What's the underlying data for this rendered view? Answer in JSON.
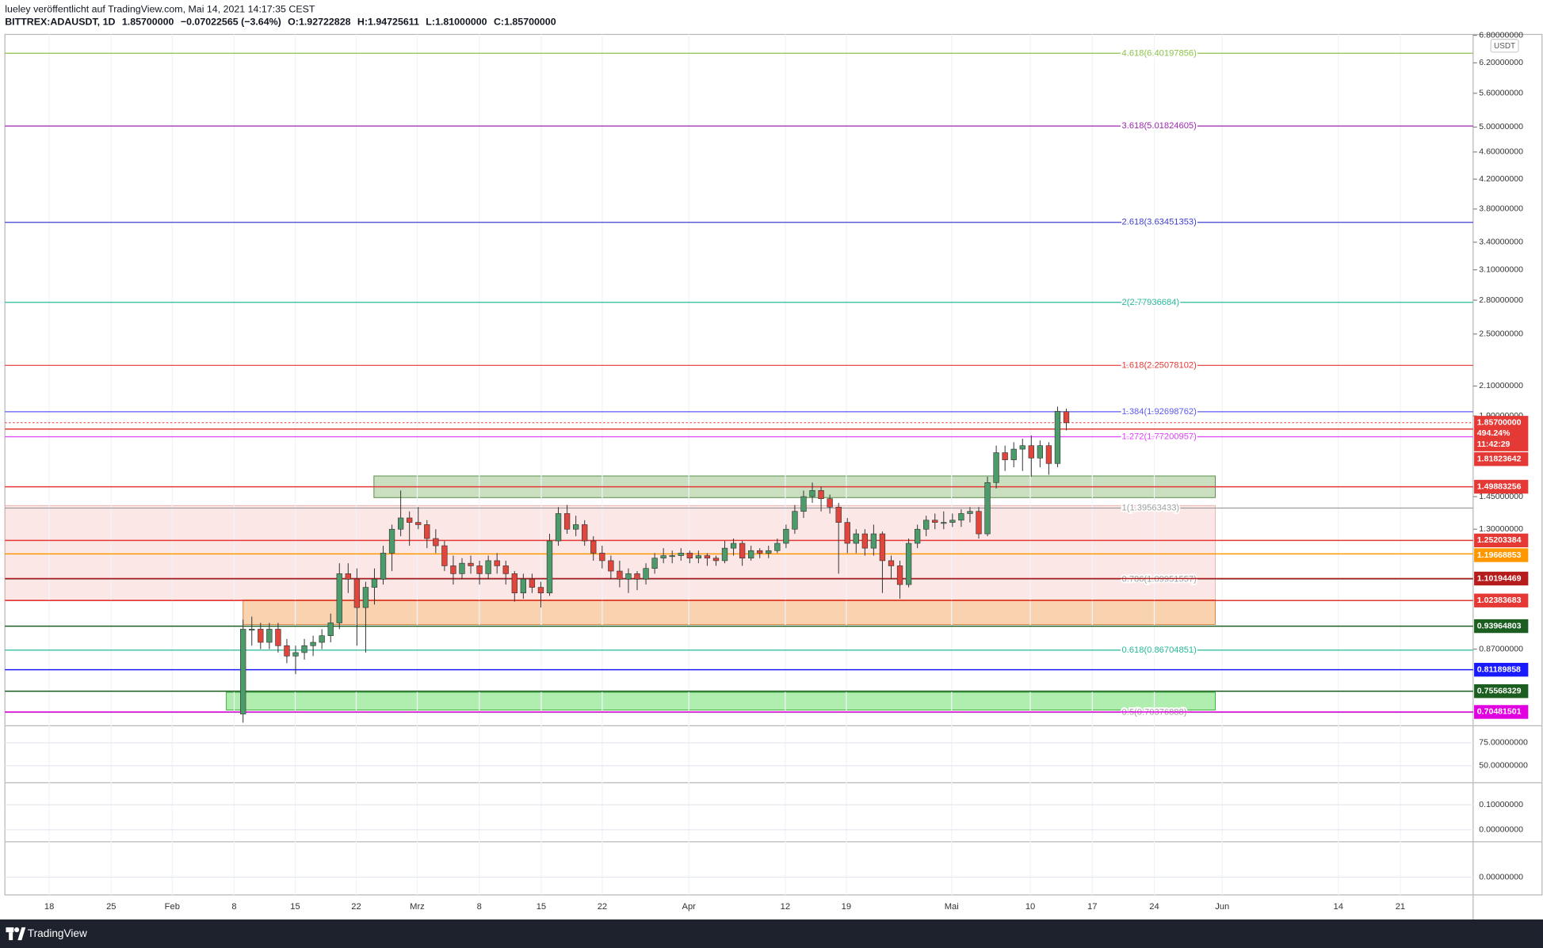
{
  "chart_data": {
    "type": "candlestick",
    "title": "lueley veröffentlicht auf TradingView.com, Mai 14, 2021 14:17:35 CEST",
    "subtitle": "BITTREX:ADAUSDT, 1D",
    "ohlc_summary": [
      "1.85700000",
      "−0.07022565 (−3.64%)",
      "O:1.92722828",
      "H:1.94725611",
      "L:1.81000000",
      "C:1.85700000"
    ],
    "currency": "USDT",
    "log_scale": true,
    "ylim": [
      0.673,
      6.82
    ],
    "yticks": [
      {
        "value": 6.8,
        "label": "6.80000000"
      },
      {
        "value": 6.2,
        "label": "6.20000000"
      },
      {
        "value": 5.6,
        "label": "5.60000000"
      },
      {
        "value": 5.0,
        "label": "5.00000000"
      },
      {
        "value": 4.6,
        "label": "4.60000000"
      },
      {
        "value": 4.2,
        "label": "4.20000000"
      },
      {
        "value": 3.8,
        "label": "3.80000000"
      },
      {
        "value": 3.4,
        "label": "3.40000000"
      },
      {
        "value": 3.1,
        "label": "3.10000000"
      },
      {
        "value": 2.8,
        "label": "2.80000000"
      },
      {
        "value": 2.5,
        "label": "2.50000000"
      },
      {
        "value": 2.1,
        "label": "2.10000000"
      },
      {
        "value": 1.9,
        "label": "1.90000000"
      },
      {
        "value": 1.45,
        "label": "1.45000000"
      },
      {
        "value": 1.3,
        "label": "1.30000000"
      },
      {
        "value": 0.87,
        "label": "0.87000000"
      }
    ],
    "x_labels": [
      "18",
      "25",
      "Feb",
      "8",
      "15",
      "22",
      "Mrz",
      "8",
      "15",
      "22",
      "Apr",
      "12",
      "19",
      "Mai",
      "10",
      "17",
      "24",
      "Jun",
      "14",
      "21"
    ],
    "up_color": "#4c9b6a",
    "down_color": "#e0463c",
    "candles": [
      [
        0.7,
        0.96,
        0.68,
        0.93
      ],
      [
        0.93,
        0.97,
        0.88,
        0.93
      ],
      [
        0.93,
        0.95,
        0.87,
        0.89
      ],
      [
        0.89,
        0.95,
        0.87,
        0.93
      ],
      [
        0.93,
        0.95,
        0.86,
        0.88
      ],
      [
        0.88,
        0.9,
        0.83,
        0.85
      ],
      [
        0.85,
        0.88,
        0.8,
        0.86
      ],
      [
        0.86,
        0.9,
        0.84,
        0.88
      ],
      [
        0.88,
        0.91,
        0.85,
        0.89
      ],
      [
        0.89,
        0.93,
        0.87,
        0.91
      ],
      [
        0.91,
        0.98,
        0.89,
        0.95
      ],
      [
        0.95,
        1.16,
        0.93,
        1.12
      ],
      [
        1.12,
        1.16,
        1.05,
        1.1
      ],
      [
        1.1,
        1.14,
        0.88,
        1.0
      ],
      [
        1.0,
        1.09,
        0.86,
        1.07
      ],
      [
        1.07,
        1.14,
        1.01,
        1.1
      ],
      [
        1.1,
        1.23,
        1.08,
        1.2
      ],
      [
        1.2,
        1.32,
        1.13,
        1.3
      ],
      [
        1.3,
        1.48,
        1.27,
        1.35
      ],
      [
        1.35,
        1.38,
        1.23,
        1.33
      ],
      [
        1.33,
        1.4,
        1.3,
        1.32
      ],
      [
        1.32,
        1.34,
        1.22,
        1.26
      ],
      [
        1.26,
        1.3,
        1.2,
        1.23
      ],
      [
        1.23,
        1.25,
        1.13,
        1.15
      ],
      [
        1.15,
        1.19,
        1.08,
        1.12
      ],
      [
        1.12,
        1.18,
        1.1,
        1.16
      ],
      [
        1.16,
        1.19,
        1.12,
        1.15
      ],
      [
        1.15,
        1.17,
        1.08,
        1.12
      ],
      [
        1.12,
        1.19,
        1.1,
        1.17
      ],
      [
        1.17,
        1.2,
        1.12,
        1.15
      ],
      [
        1.15,
        1.17,
        1.08,
        1.12
      ],
      [
        1.12,
        1.13,
        1.02,
        1.05
      ],
      [
        1.05,
        1.12,
        1.03,
        1.1
      ],
      [
        1.1,
        1.12,
        1.05,
        1.07
      ],
      [
        1.07,
        1.09,
        1.0,
        1.05
      ],
      [
        1.05,
        1.28,
        1.04,
        1.25
      ],
      [
        1.25,
        1.4,
        1.23,
        1.37
      ],
      [
        1.37,
        1.41,
        1.28,
        1.3
      ],
      [
        1.3,
        1.36,
        1.27,
        1.32
      ],
      [
        1.32,
        1.34,
        1.23,
        1.25
      ],
      [
        1.25,
        1.27,
        1.17,
        1.2
      ],
      [
        1.2,
        1.23,
        1.14,
        1.17
      ],
      [
        1.17,
        1.19,
        1.1,
        1.13
      ],
      [
        1.13,
        1.17,
        1.07,
        1.1
      ],
      [
        1.1,
        1.14,
        1.05,
        1.12
      ],
      [
        1.12,
        1.13,
        1.06,
        1.1
      ],
      [
        1.1,
        1.16,
        1.08,
        1.14
      ],
      [
        1.14,
        1.2,
        1.12,
        1.18
      ],
      [
        1.18,
        1.22,
        1.16,
        1.19
      ],
      [
        1.19,
        1.21,
        1.16,
        1.19
      ],
      [
        1.19,
        1.22,
        1.17,
        1.2
      ],
      [
        1.2,
        1.21,
        1.16,
        1.18
      ],
      [
        1.18,
        1.21,
        1.16,
        1.19
      ],
      [
        1.19,
        1.2,
        1.15,
        1.18
      ],
      [
        1.18,
        1.19,
        1.15,
        1.17
      ],
      [
        1.17,
        1.25,
        1.16,
        1.22
      ],
      [
        1.22,
        1.26,
        1.19,
        1.24
      ],
      [
        1.24,
        1.25,
        1.15,
        1.18
      ],
      [
        1.18,
        1.23,
        1.17,
        1.21
      ],
      [
        1.21,
        1.22,
        1.18,
        1.2
      ],
      [
        1.2,
        1.23,
        1.18,
        1.21
      ],
      [
        1.21,
        1.26,
        1.2,
        1.24
      ],
      [
        1.24,
        1.32,
        1.22,
        1.3
      ],
      [
        1.3,
        1.41,
        1.28,
        1.38
      ],
      [
        1.38,
        1.48,
        1.35,
        1.45
      ],
      [
        1.45,
        1.52,
        1.42,
        1.48
      ],
      [
        1.48,
        1.5,
        1.38,
        1.44
      ],
      [
        1.44,
        1.46,
        1.37,
        1.4
      ],
      [
        1.4,
        1.42,
        1.12,
        1.33
      ],
      [
        1.33,
        1.35,
        1.2,
        1.24
      ],
      [
        1.24,
        1.3,
        1.2,
        1.28
      ],
      [
        1.28,
        1.3,
        1.19,
        1.22
      ],
      [
        1.22,
        1.32,
        1.19,
        1.28
      ],
      [
        1.28,
        1.29,
        1.05,
        1.17
      ],
      [
        1.17,
        1.19,
        1.1,
        1.15
      ],
      [
        1.15,
        1.17,
        1.03,
        1.08
      ],
      [
        1.08,
        1.26,
        1.07,
        1.24
      ],
      [
        1.24,
        1.32,
        1.22,
        1.3
      ],
      [
        1.3,
        1.36,
        1.27,
        1.34
      ],
      [
        1.34,
        1.37,
        1.3,
        1.33
      ],
      [
        1.33,
        1.38,
        1.3,
        1.33
      ],
      [
        1.33,
        1.37,
        1.31,
        1.34
      ],
      [
        1.34,
        1.39,
        1.31,
        1.37
      ],
      [
        1.37,
        1.4,
        1.33,
        1.38
      ],
      [
        1.38,
        1.4,
        1.26,
        1.28
      ],
      [
        1.28,
        1.55,
        1.27,
        1.52
      ],
      [
        1.52,
        1.72,
        1.49,
        1.68
      ],
      [
        1.68,
        1.72,
        1.58,
        1.64
      ],
      [
        1.64,
        1.74,
        1.6,
        1.7
      ],
      [
        1.7,
        1.76,
        1.58,
        1.72
      ],
      [
        1.72,
        1.78,
        1.55,
        1.65
      ],
      [
        1.65,
        1.75,
        1.6,
        1.72
      ],
      [
        1.72,
        1.74,
        1.56,
        1.62
      ],
      [
        1.62,
        1.96,
        1.6,
        1.93
      ],
      [
        1.92722828,
        1.94725611,
        1.81,
        1.857
      ]
    ],
    "fib_levels": [
      {
        "value": 6.40197856,
        "label": "4.618(6.40197856)",
        "color": "#8bc34a"
      },
      {
        "value": 5.01824605,
        "label": "3.618(5.01824605)",
        "color": "#9c27b0"
      },
      {
        "value": 3.63451353,
        "label": "2.618(3.63451353)",
        "color": "#3f3fd0"
      },
      {
        "value": 2.77936684,
        "label": "2(2.77936684)",
        "color": "#26b89a"
      },
      {
        "value": 2.25078102,
        "label": "1.618(2.25078102)",
        "color": "#e53935"
      },
      {
        "value": 1.92698762,
        "label": "1.384(1.92698762)",
        "color": "#5b5bf0"
      },
      {
        "value": 1.77200957,
        "label": "1.272(1.77200957)",
        "color": "#e040fb"
      },
      {
        "value": 1.39563433,
        "label": "1(1.39563433)",
        "color": "#9e9e9e"
      },
      {
        "value": 1.09951557,
        "label": "0.786(1.09951557)",
        "color": "#9e9e9e"
      },
      {
        "value": 0.86704851,
        "label": "0.618(0.86704851)",
        "color": "#26b89a"
      },
      {
        "value": 0.70376888,
        "label": "0.5(0.70376888)",
        "color": "#9e9e9e"
      }
    ],
    "price_levels": [
      {
        "value": 1.857,
        "label": "1.85700000",
        "color": "#e53935"
      },
      {
        "value": 1.81823642,
        "label": "1.81823642",
        "color": "#e53935"
      },
      {
        "value": 1.49883256,
        "label": "1.49883256",
        "color": "#e53935"
      },
      {
        "value": 1.25203384,
        "label": "1.25203384",
        "color": "#e53935"
      },
      {
        "value": 1.19668853,
        "label": "1.19668853",
        "color": "#ff9800"
      },
      {
        "value": 1.10194469,
        "label": "1.10194469",
        "color": "#b71c1c"
      },
      {
        "value": 1.02383683,
        "label": "1.02383683",
        "color": "#e53935"
      },
      {
        "value": 0.93964803,
        "label": "0.93964803",
        "color": "#1b5e20"
      },
      {
        "value": 0.81189858,
        "label": "0.81189858",
        "color": "#1a1aff"
      },
      {
        "value": 0.75568329,
        "label": "0.75568329",
        "color": "#1b5e20"
      },
      {
        "value": 0.70481501,
        "label": "0.70481501",
        "color": "#e000e0"
      }
    ],
    "last_price_extra": [
      "494.24%",
      "11:42:29"
    ],
    "panes": [
      {
        "ylim": [
          31.5,
          93.5
        ],
        "yticks": [
          {
            "value": 75,
            "label": "75.00000000"
          },
          {
            "value": 50,
            "label": "50.00000000"
          }
        ]
      },
      {
        "ylim": [
          -0.048,
          0.188
        ],
        "yticks": [
          {
            "value": 0.1,
            "label": "0.10000000"
          },
          {
            "value": 0,
            "label": "0.00000000"
          }
        ]
      },
      {
        "ylim": [
          -0.01,
          0.02
        ],
        "yticks": [
          {
            "value": 0,
            "label": "0.00000000"
          }
        ]
      }
    ],
    "brand": "TradingView"
  }
}
